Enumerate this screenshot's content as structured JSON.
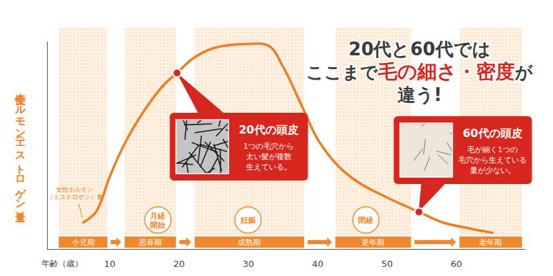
{
  "chart_data": {
    "type": "line",
    "title": "20代と60代では\nここまで毛の細さ・密度が\n違う!",
    "title_highlight": "毛の細さ・密度",
    "x_label": "年齢（歳）",
    "y_label": "女性ホルモン（エストロゲン）量",
    "x": [
      6.2,
      8,
      10,
      12,
      15,
      18,
      19.7,
      22,
      25,
      30,
      33,
      35,
      38,
      40,
      43,
      46,
      50,
      54.6,
      58,
      62,
      65.2
    ],
    "series": [
      {
        "name": "女性ホルモン\n（エストロゲン）量",
        "color": "#ef7d22",
        "values": [
          13,
          18,
          35,
          50,
          67,
          80,
          85,
          92,
          97,
          99,
          98,
          88,
          67,
          53,
          40,
          32,
          25,
          18,
          13,
          10,
          8
        ]
      }
    ],
    "xlim": [
      1,
      70
    ],
    "xticks": [
      10,
      20,
      30,
      40,
      50,
      60
    ],
    "ylim": [
      0,
      100
    ],
    "yticks": [],
    "tick_labels": "x",
    "grid": false,
    "stages": [
      {
        "label": "小児期",
        "start": 2.7,
        "end": 9.7
      },
      {
        "label": "思春期",
        "start": 12.2,
        "end": 19.6
      },
      {
        "label": "成熟期",
        "start": 22.3,
        "end": 38.1
      },
      {
        "label": "更年期",
        "start": 42.6,
        "end": 53.5
      },
      {
        "label": "老年期",
        "start": 60.5,
        "end": 69.5
      }
    ],
    "events": [
      {
        "label": "月経\n開始",
        "x": 17
      },
      {
        "label": "妊娠",
        "x": 30
      },
      {
        "label": "閉経",
        "x": 47
      }
    ],
    "callouts": [
      {
        "x": 19.7,
        "title": "20代の頭皮",
        "text": "1つの毛穴から\n太い髪が複数\n生えている。"
      },
      {
        "x": 54.6,
        "title": "60代の頭皮",
        "text": "毛が細く1つの\n毛穴から生えている\n量が少ない。"
      }
    ]
  }
}
